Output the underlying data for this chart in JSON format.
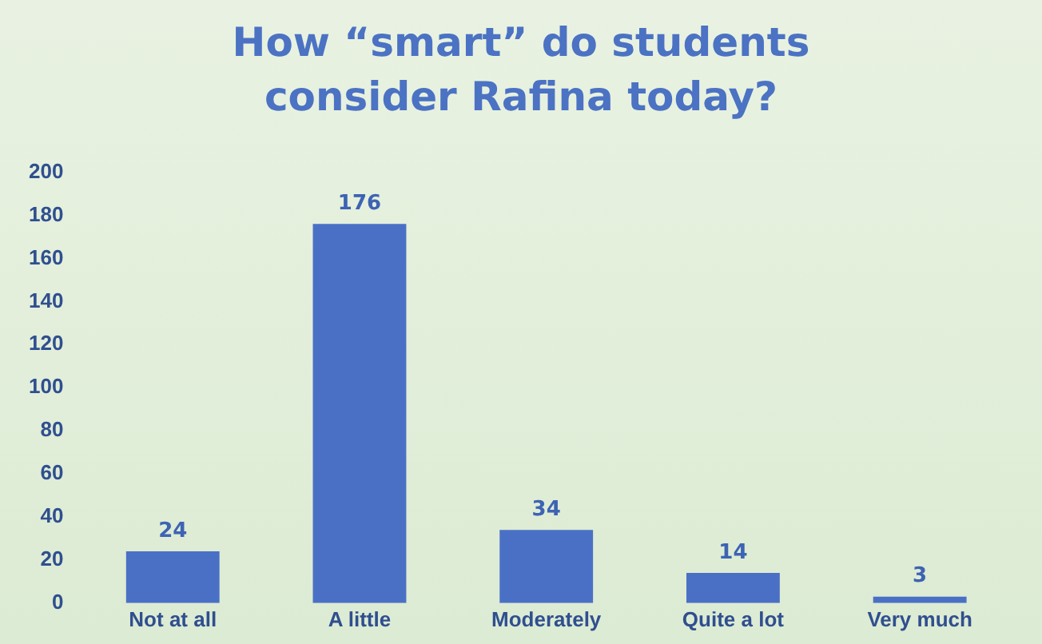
{
  "chart_data": {
    "type": "bar",
    "title": "How “smart” do students consider Rafina today?",
    "categories": [
      "Not at all",
      "A little",
      "Moderately",
      "Quite a lot",
      "Very much"
    ],
    "values": [
      24,
      176,
      34,
      14,
      3
    ],
    "color": "#4a70c6",
    "ylim": [
      0,
      200
    ],
    "yticks": [
      0,
      20,
      40,
      60,
      80,
      100,
      120,
      140,
      160,
      180,
      200
    ],
    "grid": false,
    "data_labels": true
  }
}
